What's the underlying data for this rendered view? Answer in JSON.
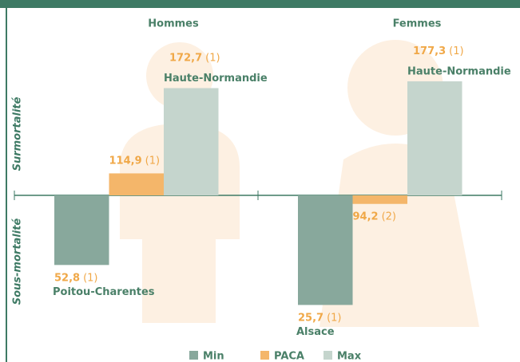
{
  "chart_data": {
    "type": "bar",
    "categories": [
      "Hommes",
      "Femmes"
    ],
    "y_labels": [
      "Surmortalité",
      "Sous-mortalité"
    ],
    "baseline": 100,
    "ylim": [
      20,
      180
    ],
    "series": [
      {
        "name": "Min",
        "color": "#88a89c",
        "values": [
          52.8,
          25.7
        ],
        "value_labels": [
          "52,8",
          "25,7"
        ],
        "notes": [
          "(1)",
          "(1)"
        ],
        "regions": [
          "Poitou-Charentes",
          "Alsace"
        ]
      },
      {
        "name": "PACA",
        "color": "#f4b66a",
        "values": [
          114.9,
          94.2
        ],
        "value_labels": [
          "114,9",
          "94,2"
        ],
        "notes": [
          "(1)",
          "(2)"
        ]
      },
      {
        "name": "Max",
        "color": "#c5d5cd",
        "values": [
          172.7,
          177.3
        ],
        "value_labels": [
          "172,7",
          "177,3"
        ],
        "notes": [
          "(1)",
          "(1)"
        ],
        "regions": [
          "Haute-Normandie",
          "Haute-Normandie"
        ]
      }
    ]
  }
}
